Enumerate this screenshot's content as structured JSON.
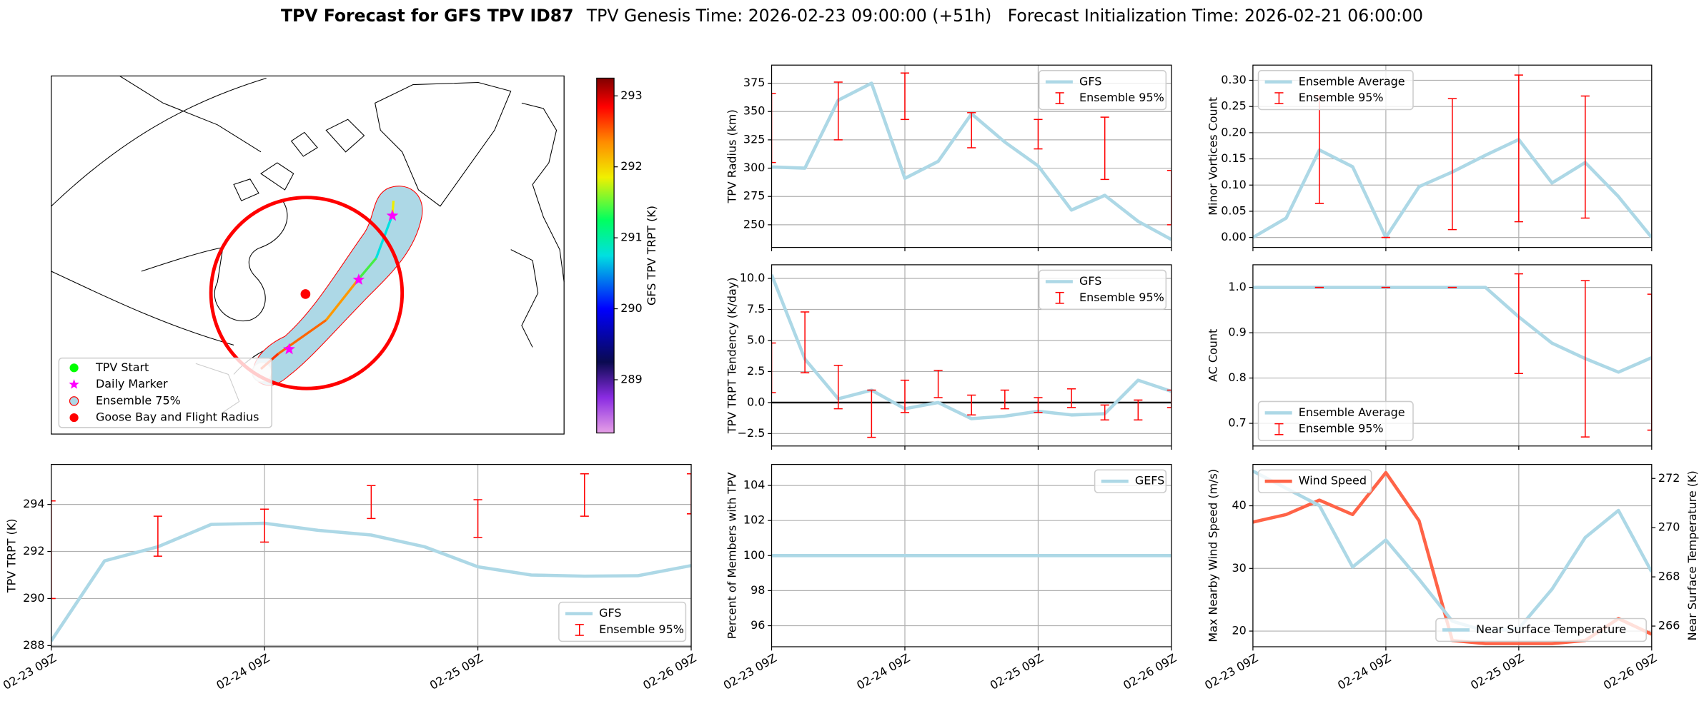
{
  "title": "TPV Forecast for GFS TPV ID87",
  "subtitle": "TPV Genesis Time: 2026-02-23 09:00:00 (+51h)   Forecast Initialization Time: 2026-02-21 06:00:00",
  "chart_data": [
    {
      "type": "map",
      "legend": [
        {
          "label": "TPV Start",
          "color": "#00ff00",
          "marker": "circle"
        },
        {
          "label": "Daily Marker",
          "color": "#ff00ff",
          "marker": "star"
        },
        {
          "label": "Ensemble 75%",
          "color": "#add8e6",
          "marker": "ring"
        },
        {
          "label": "Goose Bay and Flight Radius",
          "color": "#ff0000",
          "marker": "circle"
        }
      ],
      "colorbar": {
        "label": "GFS TPV TRPT (K)",
        "lim": [
          288.25,
          293.25
        ],
        "ticks": [
          289,
          290,
          291,
          292,
          293
        ]
      }
    },
    {
      "type": "line",
      "ylabel": "TPV Radius (km)",
      "grid": true,
      "show_xticklabels": false,
      "legend": "upper right",
      "x": [
        "02-23 09Z",
        "02-23 15Z",
        "02-23 21Z",
        "02-24 03Z",
        "02-24 09Z",
        "02-24 15Z",
        "02-24 21Z",
        "02-25 03Z",
        "02-25 09Z",
        "02-25 15Z",
        "02-25 21Z",
        "02-26 03Z",
        "02-26 09Z"
      ],
      "xticks": [
        "02-23 09Z",
        "02-24 09Z",
        "02-25 09Z",
        "02-26 09Z"
      ],
      "ylim": [
        230,
        391
      ],
      "yticks": [
        250,
        275,
        300,
        325,
        350,
        375
      ],
      "series": [
        {
          "name": "GFS",
          "kind": "line",
          "color": "#add8e6",
          "values": [
            301,
            300,
            360,
            375,
            291,
            306,
            348,
            323,
            302,
            263,
            276,
            253,
            237
          ]
        },
        {
          "name": "Ensemble 95%",
          "kind": "errorbar",
          "color": "#ff0000",
          "low": [
            305,
            null,
            325,
            null,
            343,
            null,
            318,
            null,
            317,
            null,
            290,
            null,
            250
          ],
          "high": [
            366,
            null,
            376,
            null,
            384,
            null,
            349,
            null,
            343,
            null,
            345,
            null,
            298
          ]
        }
      ]
    },
    {
      "type": "line",
      "ylabel": "Minor Vortices Count",
      "grid": true,
      "show_xticklabels": false,
      "legend": "upper left",
      "x": [
        "02-23 09Z",
        "02-23 15Z",
        "02-23 21Z",
        "02-24 03Z",
        "02-24 09Z",
        "02-24 15Z",
        "02-24 21Z",
        "02-25 03Z",
        "02-25 09Z",
        "02-25 15Z",
        "02-25 21Z",
        "02-26 03Z",
        "02-26 09Z"
      ],
      "xticks": [
        "02-23 09Z",
        "02-24 09Z",
        "02-25 09Z",
        "02-26 09Z"
      ],
      "ylim": [
        -0.019,
        0.329
      ],
      "yticks": [
        {
          "value": 0,
          "label": "0.00"
        },
        {
          "value": 0.05,
          "label": "0.05"
        },
        {
          "value": 0.1,
          "label": "0.10"
        },
        {
          "value": 0.15,
          "label": "0.15"
        },
        {
          "value": 0.2,
          "label": "0.20"
        },
        {
          "value": 0.25,
          "label": "0.25"
        },
        {
          "value": 0.3,
          "label": "0.30"
        }
      ],
      "series": [
        {
          "name": "Ensemble Average",
          "kind": "line",
          "color": "#add8e6",
          "values": [
            0,
            0.037,
            0.167,
            0.135,
            0,
            0.097,
            0.125,
            0.157,
            0.187,
            0.104,
            0.143,
            0.078,
            0
          ]
        },
        {
          "name": "Ensemble 95%",
          "kind": "errorbar",
          "color": "#ff0000",
          "low": [
            null,
            null,
            0.065,
            null,
            0,
            null,
            0.015,
            null,
            0.03,
            null,
            0.037,
            null,
            null
          ],
          "high": [
            null,
            null,
            0.27,
            null,
            0,
            null,
            0.265,
            null,
            0.31,
            null,
            0.27,
            null,
            null
          ]
        }
      ]
    },
    {
      "type": "line",
      "ylabel": "TPV TRPT Tendency (K/day)",
      "grid": true,
      "show_xticklabels": false,
      "legend": "upper right",
      "hline": 0,
      "x": [
        "02-23 09Z",
        "02-23 15Z",
        "02-23 21Z",
        "02-24 03Z",
        "02-24 09Z",
        "02-24 15Z",
        "02-24 21Z",
        "02-25 03Z",
        "02-25 09Z",
        "02-25 15Z",
        "02-25 21Z",
        "02-26 03Z",
        "02-26 09Z"
      ],
      "xticks": [
        "02-23 09Z",
        "02-24 09Z",
        "02-25 09Z",
        "02-26 09Z"
      ],
      "ylim": [
        -3.5,
        11.1
      ],
      "yticks": [
        {
          "value": -2.5,
          "label": "−2.5"
        },
        {
          "value": 0,
          "label": "0.0"
        },
        {
          "value": 2.5,
          "label": "2.5"
        },
        {
          "value": 5,
          "label": "5.0"
        },
        {
          "value": 7.5,
          "label": "7.5"
        },
        {
          "value": 10,
          "label": "10.0"
        }
      ],
      "series": [
        {
          "name": "GFS",
          "kind": "line",
          "color": "#add8e6",
          "values": [
            10.3,
            3.5,
            0.3,
            1.0,
            -0.5,
            0.0,
            -1.3,
            -1.1,
            -0.7,
            -1.0,
            -0.9,
            1.8,
            0.9
          ]
        },
        {
          "name": "Ensemble 95%",
          "kind": "errorbar",
          "color": "#ff0000",
          "low": [
            0.8,
            2.4,
            -0.5,
            -2.8,
            -0.8,
            0.4,
            -1.0,
            -0.5,
            -0.8,
            -0.4,
            -1.4,
            -1.4,
            -0.4
          ],
          "high": [
            4.8,
            7.3,
            3.0,
            1.0,
            1.8,
            2.6,
            0.6,
            1.0,
            0.4,
            1.1,
            -0.2,
            0.2,
            1.0
          ]
        }
      ]
    },
    {
      "type": "line",
      "ylabel": "AC Count",
      "grid": true,
      "show_xticklabels": false,
      "legend": "lower left",
      "x": [
        "02-23 09Z",
        "02-23 15Z",
        "02-23 21Z",
        "02-24 03Z",
        "02-24 09Z",
        "02-24 15Z",
        "02-24 21Z",
        "02-25 03Z",
        "02-25 09Z",
        "02-25 15Z",
        "02-25 21Z",
        "02-26 03Z",
        "02-26 09Z"
      ],
      "xticks": [
        "02-23 09Z",
        "02-24 09Z",
        "02-25 09Z",
        "02-26 09Z"
      ],
      "ylim": [
        0.65,
        1.05
      ],
      "yticks": [
        0.7,
        0.8,
        0.9,
        {
          "value": 1,
          "label": "1.0"
        }
      ],
      "series": [
        {
          "name": "Ensemble Average",
          "kind": "line",
          "color": "#add8e6",
          "values": [
            1,
            1,
            1,
            1,
            1,
            1,
            1,
            1,
            0.935,
            0.877,
            0.843,
            0.813,
            0.845
          ]
        },
        {
          "name": "Ensemble 95%",
          "kind": "errorbar",
          "color": "#ff0000",
          "low": [
            null,
            null,
            1,
            null,
            1,
            null,
            1,
            null,
            0.81,
            null,
            0.67,
            null,
            0.685
          ],
          "high": [
            null,
            null,
            1,
            null,
            1,
            null,
            1,
            null,
            1.03,
            null,
            1.015,
            null,
            0.985
          ]
        }
      ]
    },
    {
      "type": "line",
      "ylabel": "TPV TRPT (K)",
      "grid": true,
      "show_xticklabels": true,
      "legend": "lower right",
      "x": [
        "02-23 09Z",
        "02-23 15Z",
        "02-23 21Z",
        "02-24 03Z",
        "02-24 09Z",
        "02-24 15Z",
        "02-24 21Z",
        "02-25 03Z",
        "02-25 09Z",
        "02-25 15Z",
        "02-25 21Z",
        "02-26 03Z",
        "02-26 09Z"
      ],
      "xticks": [
        "02-23 09Z",
        "02-24 09Z",
        "02-25 09Z",
        "02-26 09Z"
      ],
      "ylim": [
        287.95,
        295.7
      ],
      "yticks": [
        288,
        290,
        292,
        294
      ],
      "series": [
        {
          "name": "GFS",
          "kind": "line",
          "color": "#add8e6",
          "values": [
            288.2,
            291.6,
            292.2,
            293.15,
            293.2,
            292.9,
            292.7,
            292.2,
            291.35,
            291.0,
            290.95,
            290.97,
            291.4
          ]
        },
        {
          "name": "Ensemble 95%",
          "kind": "errorbar",
          "color": "#ff0000",
          "low": [
            290.0,
            null,
            291.8,
            null,
            292.4,
            null,
            293.4,
            null,
            292.6,
            null,
            293.5,
            null,
            293.6
          ],
          "high": [
            294.15,
            null,
            293.5,
            null,
            293.8,
            null,
            294.8,
            null,
            294.2,
            null,
            295.3,
            null,
            295.3
          ]
        }
      ]
    },
    {
      "type": "line",
      "ylabel": "Percent of Members with TPV",
      "grid": true,
      "show_xticklabels": true,
      "legend": "upper right",
      "x": [
        "02-23 09Z",
        "02-23 15Z",
        "02-23 21Z",
        "02-24 03Z",
        "02-24 09Z",
        "02-24 15Z",
        "02-24 21Z",
        "02-25 03Z",
        "02-25 09Z",
        "02-25 15Z",
        "02-25 21Z",
        "02-26 03Z",
        "02-26 09Z"
      ],
      "xticks": [
        "02-23 09Z",
        "02-24 09Z",
        "02-25 09Z",
        "02-26 09Z"
      ],
      "ylim": [
        94.8,
        105.2
      ],
      "yticks": [
        96,
        98,
        100,
        102,
        104
      ],
      "series": [
        {
          "name": "GEFS",
          "kind": "line",
          "color": "#add8e6",
          "values": [
            100,
            100,
            100,
            100,
            100,
            100,
            100,
            100,
            100,
            100,
            100,
            100,
            100
          ]
        }
      ]
    },
    {
      "type": "line",
      "ylabel": "Max Nearby Wind Speed (m/s)",
      "y2label": "Near Surface Temperature (K)",
      "y_color": "#ff6347",
      "y2_color": "#4169e1",
      "grid": true,
      "show_xticklabels": true,
      "x": [
        "02-23 09Z",
        "02-23 15Z",
        "02-23 21Z",
        "02-24 03Z",
        "02-24 09Z",
        "02-24 15Z",
        "02-24 21Z",
        "02-25 03Z",
        "02-25 09Z",
        "02-25 15Z",
        "02-25 21Z",
        "02-26 03Z",
        "02-26 09Z"
      ],
      "xticks": [
        "02-23 09Z",
        "02-24 09Z",
        "02-25 09Z",
        "02-26 09Z"
      ],
      "ylim": [
        17.5,
        46.6
      ],
      "yticks": [
        20,
        30,
        40
      ],
      "y2lim": [
        265.16,
        272.57
      ],
      "y2ticks": [
        266,
        268,
        270,
        272
      ],
      "series": [
        {
          "name": "Wind Speed",
          "kind": "line",
          "color": "#ff6347",
          "legend": "upper left",
          "values": [
            37.4,
            38.6,
            40.9,
            38.6,
            45.3,
            37.6,
            18.5,
            18,
            18,
            18,
            18.5,
            22,
            19.5
          ]
        },
        {
          "name": "Near Surface Temperature",
          "kind": "line",
          "axis": "y2",
          "color": "#add8e6",
          "legend": "lower right",
          "values": [
            272.3,
            271.6,
            270.9,
            268.4,
            269.5,
            267.9,
            266.2,
            265.8,
            265.9,
            267.5,
            269.6,
            270.7,
            268.2
          ]
        }
      ]
    }
  ]
}
